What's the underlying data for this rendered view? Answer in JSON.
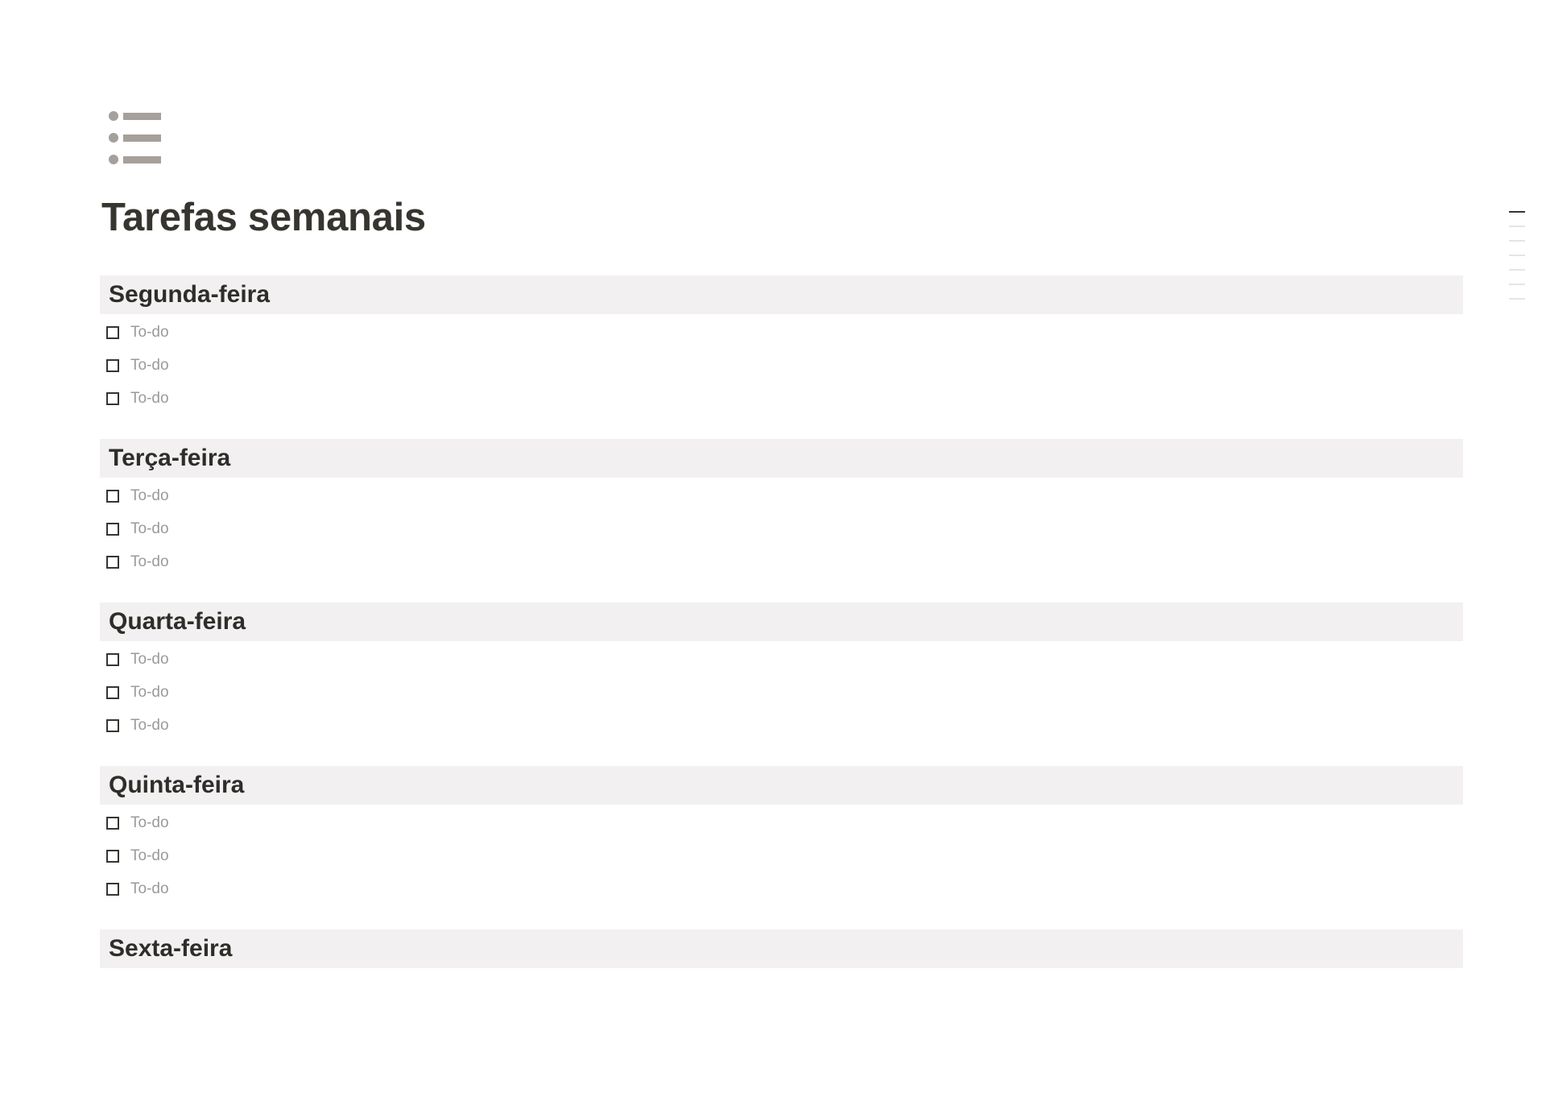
{
  "page": {
    "icon": "bulleted-list-icon",
    "title": "Tarefas semanais"
  },
  "sections": [
    {
      "title": "Segunda-feira",
      "todos": [
        "To-do",
        "To-do",
        "To-do"
      ]
    },
    {
      "title": "Terça-feira",
      "todos": [
        "To-do",
        "To-do",
        "To-do"
      ]
    },
    {
      "title": "Quarta-feira",
      "todos": [
        "To-do",
        "To-do",
        "To-do"
      ]
    },
    {
      "title": "Quinta-feira",
      "todos": [
        "To-do",
        "To-do",
        "To-do"
      ]
    },
    {
      "title": "Sexta-feira",
      "todos": []
    }
  ],
  "outline": {
    "count": 7,
    "active_index": 0
  },
  "colors": {
    "header_bg": "#f2f0f0",
    "icon": "#a5a09b",
    "text": "#373530",
    "placeholder": "#9b9a97"
  }
}
